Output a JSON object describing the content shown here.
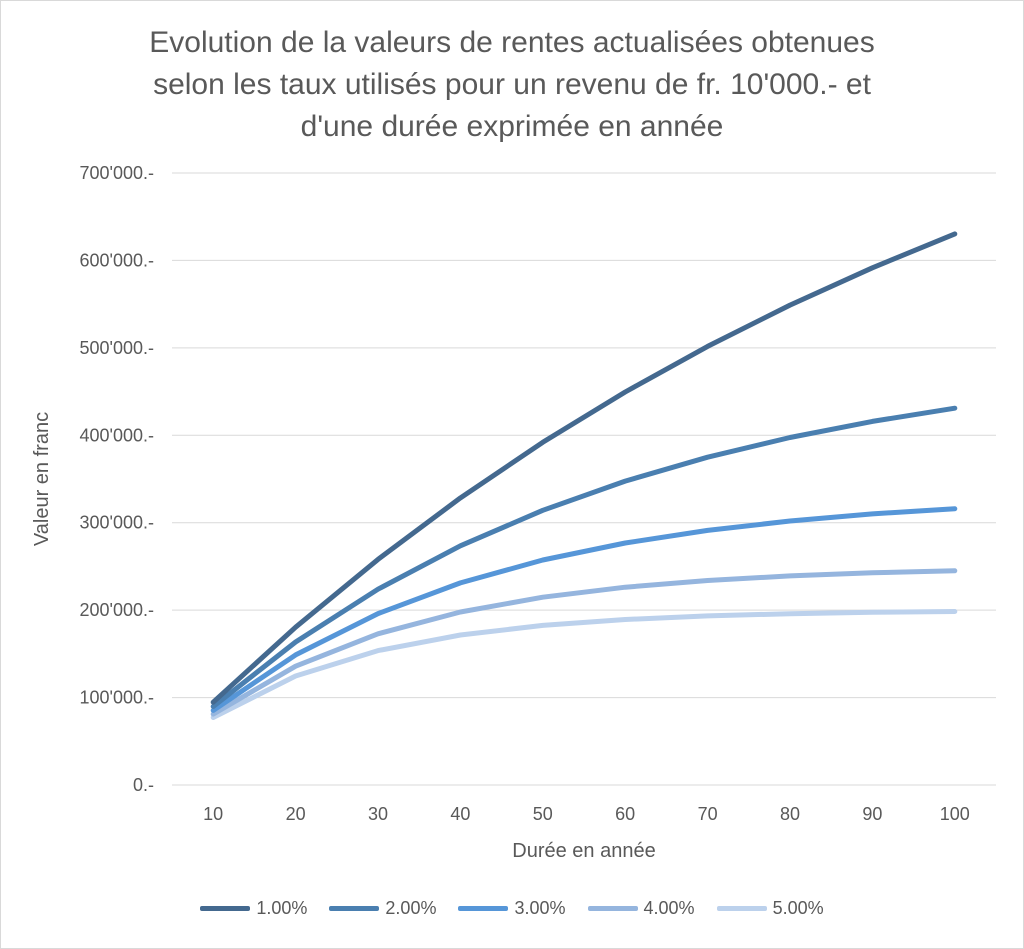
{
  "chart_data": {
    "type": "line",
    "title_lines": [
      "Evolution de la valeurs de rentes actualisées obtenues",
      "selon les taux utilisés pour un revenu de fr. 10'000.- et",
      "d'une durée exprimée en année"
    ],
    "xlabel": "Durée en année",
    "ylabel": "Valeur en franc",
    "categories": [
      "10",
      "20",
      "30",
      "40",
      "50",
      "60",
      "70",
      "80",
      "90",
      "100"
    ],
    "ylim": [
      0,
      700000
    ],
    "yticks": [
      "0.-",
      "100'000.-",
      "200'000.-",
      "300'000.-",
      "400'000.-",
      "500'000.-",
      "600'000.-",
      "700'000.-"
    ],
    "grid": true,
    "legend_position": "bottom",
    "series": [
      {
        "name": "1.00%",
        "color": "#44698f",
        "values": [
          94713,
          180456,
          258077,
          328347,
          391961,
          449550,
          501685,
          548882,
          591609,
          630289
        ]
      },
      {
        "name": "2.00%",
        "color": "#4a7fb0",
        "values": [
          89826,
          163514,
          223965,
          273555,
          314236,
          347608,
          374986,
          397445,
          415869,
          430983
        ]
      },
      {
        "name": "3.00%",
        "color": "#5696d8",
        "values": [
          85302,
          148775,
          196004,
          231148,
          257298,
          276756,
          291234,
          302008,
          310025,
          315989
        ]
      },
      {
        "name": "4.00%",
        "color": "#95b5de",
        "values": [
          81109,
          135903,
          172920,
          197928,
          214822,
          226235,
          233945,
          239154,
          242673,
          245050
        ]
      },
      {
        "name": "5.00%",
        "color": "#bcd1ec",
        "values": [
          77217,
          124622,
          153725,
          171591,
          182559,
          189293,
          193427,
          195965,
          197523,
          198479
        ]
      }
    ]
  }
}
